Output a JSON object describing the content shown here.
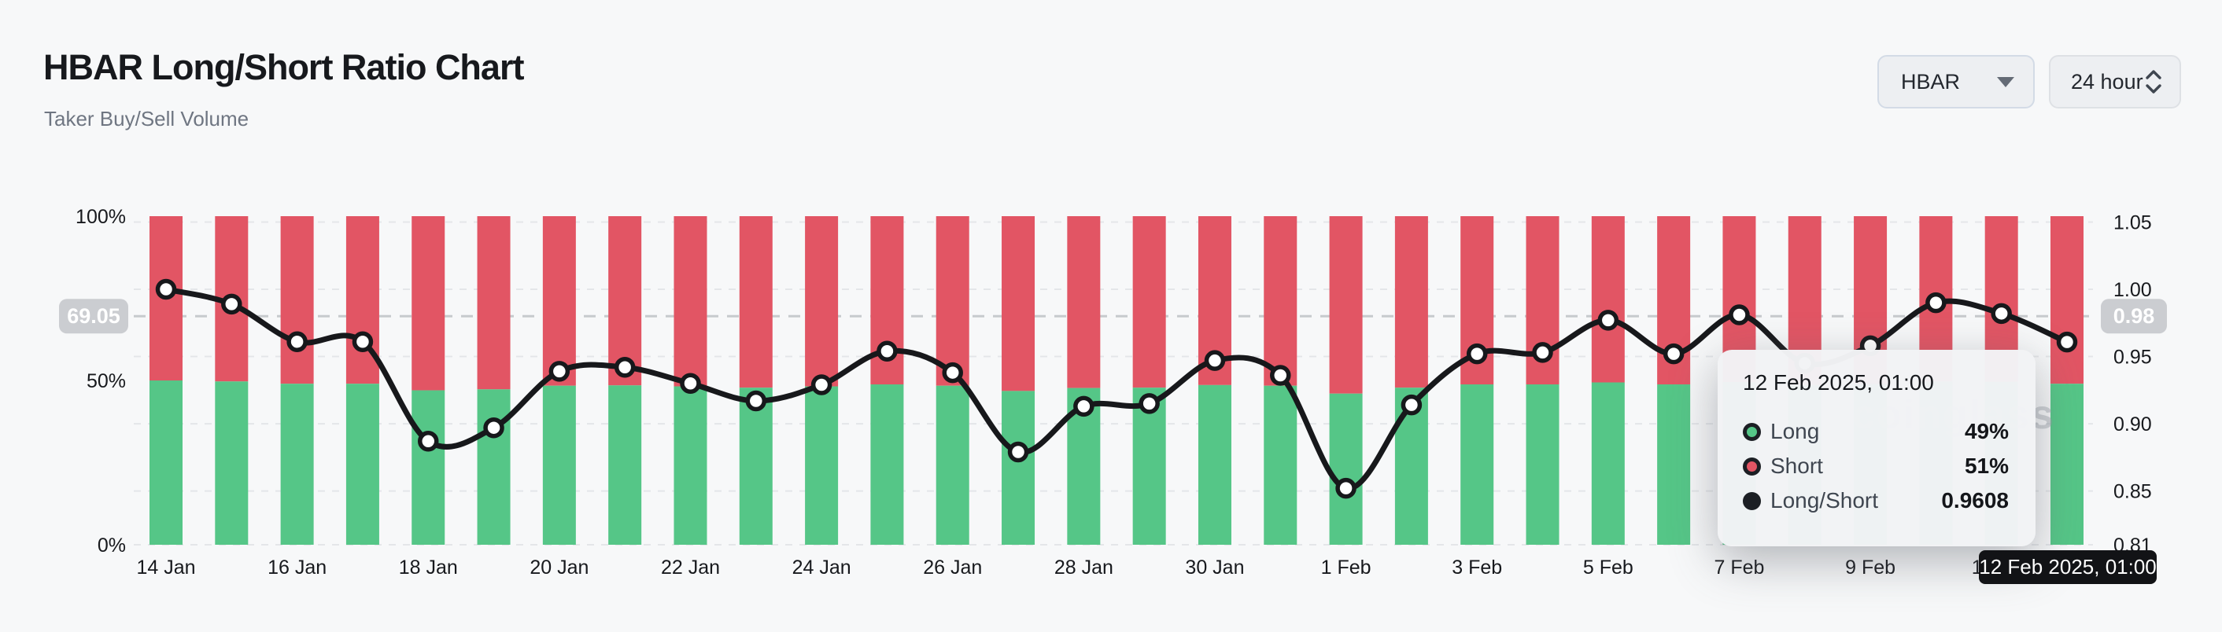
{
  "header": {
    "title": "HBAR Long/Short Ratio Chart",
    "subtitle": "Taker Buy/Sell Volume",
    "symbol_select": {
      "value": "HBAR",
      "icon": "caret-down"
    },
    "interval_select": {
      "value": "24 hour",
      "icon": "chevrons-up-down"
    }
  },
  "watermark": "coinglass",
  "tooltip": {
    "title": "12 Feb 2025, 01:00",
    "rows": [
      {
        "label": "Long",
        "value": "49%",
        "color": "#55c687"
      },
      {
        "label": "Short",
        "value": "51%",
        "color": "#e25564"
      },
      {
        "label": "Long/Short",
        "value": "0.9608",
        "color": "#1c1f24"
      }
    ]
  },
  "crosshair": {
    "x_label": "12 Feb 2025, 01:00",
    "left_axis_value": "69.05",
    "right_axis_value": "0.98",
    "date_index": 29
  },
  "chart_data": {
    "type": "bar",
    "subtype": "stacked-bars-with-line-overlay",
    "title": "HBAR Long/Short Ratio Chart",
    "xlabel": "",
    "ylabel_left": "Taker volume share (%)",
    "ylabel_right": "Long/Short ratio",
    "legend_position": "tooltip-only",
    "grid": "horizontal-dashed",
    "categories": [
      "14 Jan",
      "15 Jan",
      "16 Jan",
      "17 Jan",
      "18 Jan",
      "19 Jan",
      "20 Jan",
      "21 Jan",
      "22 Jan",
      "23 Jan",
      "24 Jan",
      "25 Jan",
      "26 Jan",
      "27 Jan",
      "28 Jan",
      "29 Jan",
      "30 Jan",
      "31 Jan",
      "1 Feb",
      "2 Feb",
      "3 Feb",
      "4 Feb",
      "5 Feb",
      "6 Feb",
      "7 Feb",
      "8 Feb",
      "9 Feb",
      "10 Feb",
      "11 Feb",
      "12 Feb"
    ],
    "x_tick_labels": [
      "14 Jan",
      "16 Jan",
      "18 Jan",
      "20 Jan",
      "22 Jan",
      "24 Jan",
      "26 Jan",
      "28 Jan",
      "30 Jan",
      "1 Feb",
      "3 Feb",
      "5 Feb",
      "7 Feb",
      "9 Feb",
      "11 Feb"
    ],
    "series": [
      {
        "name": "Long",
        "type": "bar-stack-bottom",
        "color": "#55c687",
        "axis": "left",
        "unit": "%",
        "values": [
          50.0,
          49.7,
          49.0,
          49.0,
          47.0,
          47.3,
          48.4,
          48.5,
          48.2,
          47.8,
          48.2,
          48.8,
          48.4,
          46.8,
          47.7,
          47.8,
          48.6,
          48.4,
          46.0,
          47.8,
          48.8,
          48.8,
          49.4,
          48.8,
          49.5,
          48.6,
          48.9,
          49.7,
          49.6,
          49.0
        ]
      },
      {
        "name": "Short",
        "type": "bar-stack-top",
        "color": "#e25564",
        "axis": "left",
        "unit": "%",
        "values": [
          50.0,
          50.3,
          51.0,
          51.0,
          53.0,
          52.7,
          51.6,
          51.5,
          51.8,
          52.2,
          51.8,
          51.2,
          51.6,
          53.2,
          52.3,
          52.2,
          51.4,
          51.6,
          54.0,
          52.2,
          51.2,
          51.2,
          50.6,
          51.2,
          50.5,
          51.4,
          51.1,
          50.3,
          50.4,
          51.0
        ]
      },
      {
        "name": "Long/Short",
        "type": "line",
        "color": "#17181b",
        "axis": "right",
        "values": [
          1.0,
          0.989,
          0.961,
          0.961,
          0.887,
          0.897,
          0.939,
          0.942,
          0.93,
          0.917,
          0.929,
          0.954,
          0.938,
          0.879,
          0.913,
          0.915,
          0.947,
          0.936,
          0.852,
          0.914,
          0.952,
          0.953,
          0.977,
          0.952,
          0.981,
          0.945,
          0.958,
          0.99,
          0.982,
          0.9608
        ]
      }
    ],
    "left_axis": {
      "tick_labels": [
        "100%",
        "50%",
        "0%"
      ],
      "tick_values": [
        100,
        50,
        0
      ],
      "range": [
        0,
        100
      ]
    },
    "right_axis": {
      "tick_labels": [
        "1.05",
        "1.00",
        "0.95",
        "0.90",
        "0.85",
        "0.81"
      ],
      "tick_values": [
        1.05,
        1.0,
        0.95,
        0.9,
        0.85,
        0.81
      ],
      "range": [
        0.81,
        1.0544
      ]
    }
  },
  "colors": {
    "background": "#f7f8f9",
    "long_green": "#55c687",
    "short_red": "#e25564",
    "line_black": "#17181b",
    "grid_dash": "#e4e6e9",
    "crosshair_dash": "#c7cacd",
    "badge_gray": "#cbcdd1",
    "axis_text": "#17191d"
  }
}
